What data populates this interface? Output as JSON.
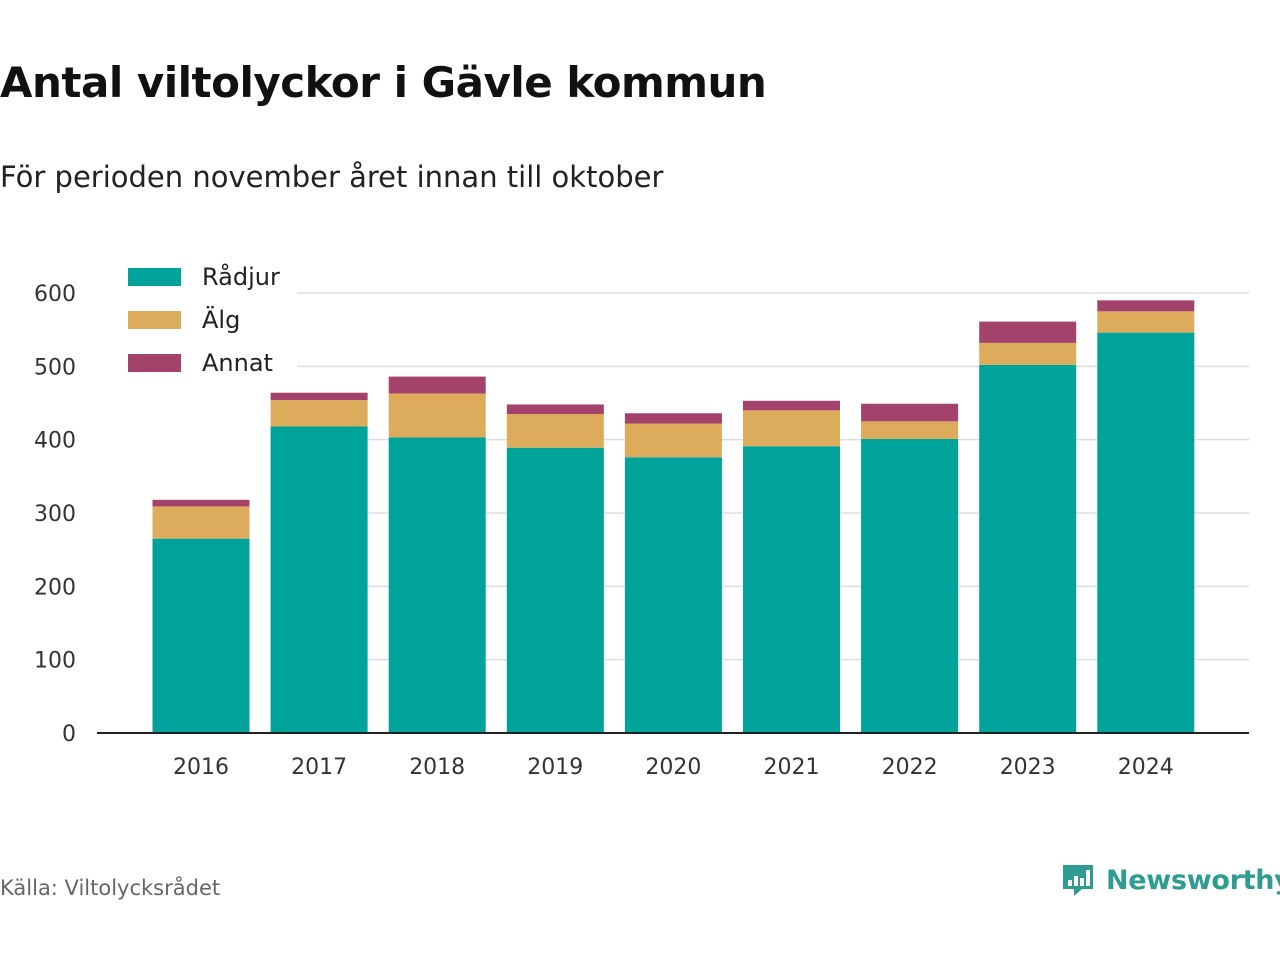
{
  "title": "Antal viltolyckor i Gävle kommun",
  "subtitle": "För perioden november året innan till oktober",
  "source": "Källa: Viltolycksrådet",
  "brand": {
    "name": "Newsworthy",
    "icon": "bar-chart-bubble-icon",
    "color": "#2e9c91"
  },
  "chart_data": {
    "type": "bar",
    "stacked": true,
    "categories": [
      "2016",
      "2017",
      "2018",
      "2019",
      "2020",
      "2021",
      "2022",
      "2023",
      "2024"
    ],
    "series": [
      {
        "name": "Rådjur",
        "color": "#00a39a",
        "values": [
          265,
          418,
          403,
          389,
          376,
          391,
          401,
          502,
          546
        ]
      },
      {
        "name": "Älg",
        "color": "#dcac5c",
        "values": [
          44,
          36,
          60,
          46,
          46,
          49,
          24,
          30,
          29
        ]
      },
      {
        "name": "Annat",
        "color": "#a3426a",
        "values": [
          9,
          10,
          23,
          13,
          14,
          13,
          24,
          29,
          15
        ]
      }
    ],
    "ylim": [
      0,
      600
    ],
    "yticks": [
      0,
      100,
      200,
      300,
      400,
      500,
      600
    ],
    "grid": true,
    "legend": "top-left",
    "xlabel": "",
    "ylabel": ""
  }
}
